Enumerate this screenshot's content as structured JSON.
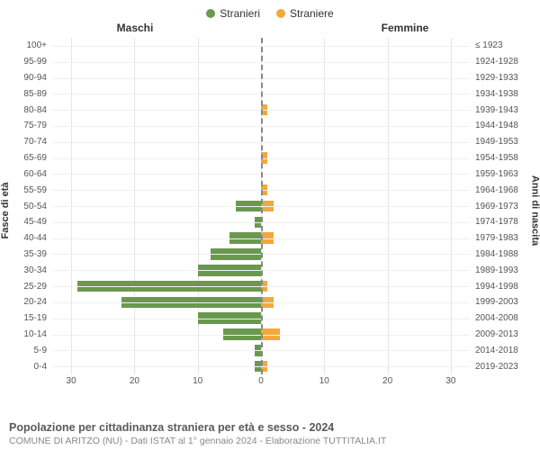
{
  "legend": {
    "male": {
      "label": "Stranieri",
      "color": "#6a994e"
    },
    "female": {
      "label": "Straniere",
      "color": "#f2a93b"
    }
  },
  "columns": {
    "left": "Maschi",
    "right": "Femmine"
  },
  "axis_labels": {
    "left": "Fasce di età",
    "right": "Anni di nascita"
  },
  "chart": {
    "type": "population-pyramid",
    "xmax": 33,
    "xticks": [
      0,
      10,
      20,
      30
    ],
    "background_color": "#ffffff",
    "grid_color": "#e5e5e5",
    "center_line_color": "#888888",
    "bar_colors": {
      "male": "#6a994e",
      "female": "#f2a93b"
    },
    "rows": [
      {
        "age": "100+",
        "birth": "≤ 1923",
        "m": 0,
        "f": 0
      },
      {
        "age": "95-99",
        "birth": "1924-1928",
        "m": 0,
        "f": 0
      },
      {
        "age": "90-94",
        "birth": "1929-1933",
        "m": 0,
        "f": 0
      },
      {
        "age": "85-89",
        "birth": "1934-1938",
        "m": 0,
        "f": 0
      },
      {
        "age": "80-84",
        "birth": "1939-1943",
        "m": 0,
        "f": 1
      },
      {
        "age": "75-79",
        "birth": "1944-1948",
        "m": 0,
        "f": 0
      },
      {
        "age": "70-74",
        "birth": "1949-1953",
        "m": 0,
        "f": 0
      },
      {
        "age": "65-69",
        "birth": "1954-1958",
        "m": 0,
        "f": 1
      },
      {
        "age": "60-64",
        "birth": "1959-1963",
        "m": 0,
        "f": 0
      },
      {
        "age": "55-59",
        "birth": "1964-1968",
        "m": 0,
        "f": 1
      },
      {
        "age": "50-54",
        "birth": "1969-1973",
        "m": 4,
        "f": 2
      },
      {
        "age": "45-49",
        "birth": "1974-1978",
        "m": 1,
        "f": 0
      },
      {
        "age": "40-44",
        "birth": "1979-1983",
        "m": 5,
        "f": 2
      },
      {
        "age": "35-39",
        "birth": "1984-1988",
        "m": 8,
        "f": 0
      },
      {
        "age": "30-34",
        "birth": "1989-1993",
        "m": 10,
        "f": 0
      },
      {
        "age": "25-29",
        "birth": "1994-1998",
        "m": 29,
        "f": 1
      },
      {
        "age": "20-24",
        "birth": "1999-2003",
        "m": 22,
        "f": 2
      },
      {
        "age": "15-19",
        "birth": "2004-2008",
        "m": 10,
        "f": 0
      },
      {
        "age": "10-14",
        "birth": "2009-2013",
        "m": 6,
        "f": 3
      },
      {
        "age": "5-9",
        "birth": "2014-2018",
        "m": 1,
        "f": 0
      },
      {
        "age": "0-4",
        "birth": "2019-2023",
        "m": 1,
        "f": 1
      }
    ]
  },
  "footer": {
    "title": "Popolazione per cittadinanza straniera per età e sesso - 2024",
    "subtitle": "COMUNE DI ARITZO (NU) - Dati ISTAT al 1° gennaio 2024 - Elaborazione TUTTITALIA.IT"
  }
}
